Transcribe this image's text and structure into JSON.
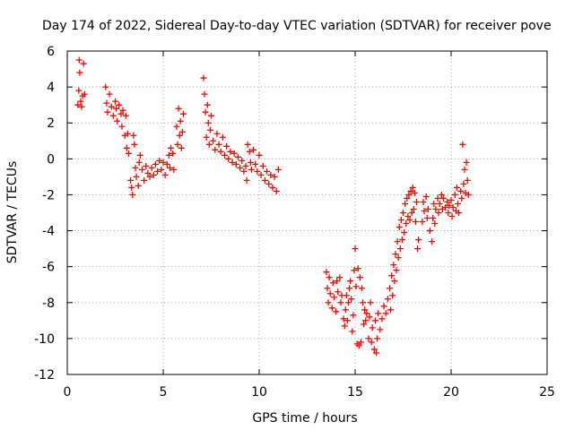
{
  "chart_data": {
    "type": "scatter",
    "title": "Day 174 of 2022, Sidereal Day-to-day VTEC variation (SDTVAR) for receiver pove",
    "xlabel": "GPS time / hours",
    "ylabel": "SDTVAR / TECUs",
    "xlim": [
      0,
      25
    ],
    "ylim": [
      -12,
      6
    ],
    "xticks": [
      0,
      5,
      10,
      15,
      20,
      25
    ],
    "yticks": [
      -12,
      -10,
      -8,
      -6,
      -4,
      -2,
      0,
      2,
      4,
      6
    ],
    "grid": true,
    "marker": "+",
    "marker_color": "#ff0000",
    "series": [
      {
        "name": "SDTVAR",
        "points": [
          [
            0.55,
            3.0
          ],
          [
            0.6,
            3.8
          ],
          [
            0.62,
            5.5
          ],
          [
            0.65,
            4.8
          ],
          [
            0.7,
            3.2
          ],
          [
            0.75,
            2.9
          ],
          [
            0.8,
            3.5
          ],
          [
            0.85,
            5.3
          ],
          [
            0.9,
            3.6
          ],
          [
            2.0,
            4.0
          ],
          [
            2.05,
            3.1
          ],
          [
            2.1,
            2.6
          ],
          [
            2.2,
            3.6
          ],
          [
            2.3,
            2.9
          ],
          [
            2.4,
            2.4
          ],
          [
            2.5,
            3.2
          ],
          [
            2.55,
            2.8
          ],
          [
            2.6,
            2.1
          ],
          [
            2.7,
            3.0
          ],
          [
            2.8,
            2.5
          ],
          [
            2.85,
            1.8
          ],
          [
            2.9,
            2.7
          ],
          [
            3.0,
            1.3
          ],
          [
            3.05,
            2.4
          ],
          [
            3.1,
            0.6
          ],
          [
            3.15,
            1.4
          ],
          [
            3.2,
            0.3
          ],
          [
            3.3,
            -1.2
          ],
          [
            3.35,
            -1.6
          ],
          [
            3.4,
            -2.0
          ],
          [
            3.45,
            1.3
          ],
          [
            3.5,
            0.8
          ],
          [
            3.55,
            -0.5
          ],
          [
            3.6,
            -1.0
          ],
          [
            3.7,
            -1.5
          ],
          [
            3.75,
            -0.2
          ],
          [
            3.8,
            0.2
          ],
          [
            3.9,
            -0.6
          ],
          [
            4.0,
            -1.2
          ],
          [
            4.1,
            -0.4
          ],
          [
            4.2,
            -0.8
          ],
          [
            4.3,
            -1.0
          ],
          [
            4.4,
            -0.5
          ],
          [
            4.5,
            -0.9
          ],
          [
            4.6,
            -0.3
          ],
          [
            4.7,
            -0.7
          ],
          [
            4.8,
            -0.1
          ],
          [
            4.9,
            -0.6
          ],
          [
            5.0,
            -0.2
          ],
          [
            5.1,
            -0.9
          ],
          [
            5.2,
            -0.3
          ],
          [
            5.3,
            0.2
          ],
          [
            5.35,
            -0.5
          ],
          [
            5.4,
            0.6
          ],
          [
            5.5,
            0.3
          ],
          [
            5.55,
            -0.6
          ],
          [
            5.7,
            1.8
          ],
          [
            5.75,
            0.8
          ],
          [
            5.8,
            2.8
          ],
          [
            5.85,
            1.3
          ],
          [
            5.9,
            2.1
          ],
          [
            5.95,
            0.6
          ],
          [
            6.0,
            1.5
          ],
          [
            6.05,
            2.5
          ],
          [
            7.1,
            4.5
          ],
          [
            7.15,
            3.6
          ],
          [
            7.2,
            2.6
          ],
          [
            7.25,
            1.2
          ],
          [
            7.3,
            3.0
          ],
          [
            7.35,
            2.0
          ],
          [
            7.4,
            0.8
          ],
          [
            7.45,
            1.6
          ],
          [
            7.5,
            2.4
          ],
          [
            7.6,
            1.0
          ],
          [
            7.7,
            0.5
          ],
          [
            7.8,
            1.4
          ],
          [
            7.9,
            0.8
          ],
          [
            8.0,
            0.4
          ],
          [
            8.1,
            1.2
          ],
          [
            8.2,
            0.2
          ],
          [
            8.3,
            0.7
          ],
          [
            8.4,
            0.0
          ],
          [
            8.5,
            0.4
          ],
          [
            8.6,
            -0.2
          ],
          [
            8.7,
            0.3
          ],
          [
            8.8,
            -0.3
          ],
          [
            8.9,
            0.1
          ],
          [
            9.0,
            -0.5
          ],
          [
            9.1,
            -0.1
          ],
          [
            9.2,
            -0.7
          ],
          [
            9.3,
            -0.4
          ],
          [
            9.35,
            -1.2
          ],
          [
            9.4,
            0.8
          ],
          [
            9.5,
            0.4
          ],
          [
            9.55,
            -0.2
          ],
          [
            9.6,
            -0.6
          ],
          [
            9.7,
            0.5
          ],
          [
            9.8,
            -0.3
          ],
          [
            9.9,
            -0.7
          ],
          [
            10.0,
            0.2
          ],
          [
            10.1,
            -0.9
          ],
          [
            10.2,
            -0.4
          ],
          [
            10.3,
            -1.2
          ],
          [
            10.4,
            -0.7
          ],
          [
            10.5,
            -1.4
          ],
          [
            10.6,
            -0.9
          ],
          [
            10.7,
            -1.6
          ],
          [
            10.8,
            -1.0
          ],
          [
            10.9,
            -1.8
          ],
          [
            11.0,
            -0.6
          ],
          [
            13.5,
            -6.3
          ],
          [
            13.55,
            -7.2
          ],
          [
            13.6,
            -8.0
          ],
          [
            13.65,
            -6.6
          ],
          [
            13.7,
            -7.5
          ],
          [
            13.8,
            -8.3
          ],
          [
            13.85,
            -6.9
          ],
          [
            13.9,
            -7.7
          ],
          [
            14.0,
            -8.5
          ],
          [
            14.05,
            -6.8
          ],
          [
            14.1,
            -7.4
          ],
          [
            14.2,
            -6.6
          ],
          [
            14.25,
            -8.0
          ],
          [
            14.3,
            -7.6
          ],
          [
            14.4,
            -8.9
          ],
          [
            14.45,
            -9.3
          ],
          [
            14.5,
            -8.4
          ],
          [
            14.55,
            -7.6
          ],
          [
            14.6,
            -9.0
          ],
          [
            14.65,
            -8.0
          ],
          [
            14.7,
            -7.2
          ],
          [
            14.75,
            -6.8
          ],
          [
            14.8,
            -7.8
          ],
          [
            14.85,
            -9.6
          ],
          [
            14.9,
            -8.7
          ],
          [
            14.95,
            -6.2
          ],
          [
            15.0,
            -5.0
          ],
          [
            15.05,
            -7.1
          ],
          [
            15.1,
            -10.3
          ],
          [
            15.15,
            -6.1
          ],
          [
            15.2,
            -10.4
          ],
          [
            15.25,
            -6.6
          ],
          [
            15.3,
            -10.2
          ],
          [
            15.35,
            -7.2
          ],
          [
            15.4,
            -8.0
          ],
          [
            15.45,
            -9.2
          ],
          [
            15.5,
            -8.4
          ],
          [
            15.55,
            -9.0
          ],
          [
            15.6,
            -8.6
          ],
          [
            15.7,
            -10.0
          ],
          [
            15.75,
            -8.8
          ],
          [
            15.8,
            -8.0
          ],
          [
            15.85,
            -10.2
          ],
          [
            15.9,
            -9.4
          ],
          [
            16.0,
            -10.6
          ],
          [
            16.05,
            -9.0
          ],
          [
            16.1,
            -10.8
          ],
          [
            16.15,
            -10.0
          ],
          [
            16.2,
            -8.6
          ],
          [
            16.3,
            -9.5
          ],
          [
            16.4,
            -8.9
          ],
          [
            16.5,
            -8.2
          ],
          [
            16.6,
            -8.6
          ],
          [
            16.7,
            -7.8
          ],
          [
            16.8,
            -7.2
          ],
          [
            16.85,
            -8.4
          ],
          [
            16.9,
            -6.5
          ],
          [
            16.95,
            -7.6
          ],
          [
            17.0,
            -5.9
          ],
          [
            17.05,
            -6.8
          ],
          [
            17.1,
            -5.3
          ],
          [
            17.15,
            -6.2
          ],
          [
            17.2,
            -4.6
          ],
          [
            17.25,
            -5.5
          ],
          [
            17.3,
            -3.8
          ],
          [
            17.35,
            -5.0
          ],
          [
            17.4,
            -3.4
          ],
          [
            17.45,
            -4.5
          ],
          [
            17.5,
            -3.0
          ],
          [
            17.55,
            -4.1
          ],
          [
            17.6,
            -2.5
          ],
          [
            17.65,
            -3.6
          ],
          [
            17.7,
            -2.2
          ],
          [
            17.75,
            -3.2
          ],
          [
            17.8,
            -2.0
          ],
          [
            17.85,
            -3.4
          ],
          [
            17.9,
            -1.8
          ],
          [
            17.95,
            -3.0
          ],
          [
            18.0,
            -1.6
          ],
          [
            18.05,
            -2.8
          ],
          [
            18.1,
            -1.9
          ],
          [
            18.15,
            -3.5
          ],
          [
            18.2,
            -2.4
          ],
          [
            18.25,
            -5.0
          ],
          [
            18.3,
            -4.5
          ],
          [
            18.5,
            -3.5
          ],
          [
            18.55,
            -2.4
          ],
          [
            18.6,
            -2.9
          ],
          [
            18.7,
            -2.1
          ],
          [
            18.75,
            -3.3
          ],
          [
            18.8,
            -2.8
          ],
          [
            18.9,
            -4.0
          ],
          [
            19.0,
            -4.6
          ],
          [
            19.05,
            -3.3
          ],
          [
            19.1,
            -2.5
          ],
          [
            19.15,
            -3.6
          ],
          [
            19.2,
            -2.8
          ],
          [
            19.3,
            -2.2
          ],
          [
            19.35,
            -3.0
          ],
          [
            19.4,
            -2.5
          ],
          [
            19.5,
            -2.0
          ],
          [
            19.55,
            -2.8
          ],
          [
            19.6,
            -2.2
          ],
          [
            19.7,
            -2.7
          ],
          [
            19.8,
            -2.4
          ],
          [
            19.85,
            -3.0
          ],
          [
            19.9,
            -2.6
          ],
          [
            20.0,
            -2.3
          ],
          [
            20.05,
            -3.2
          ],
          [
            20.1,
            -2.7
          ],
          [
            20.2,
            -2.0
          ],
          [
            20.25,
            -2.9
          ],
          [
            20.3,
            -1.6
          ],
          [
            20.35,
            -2.5
          ],
          [
            20.4,
            -3.0
          ],
          [
            20.5,
            -1.8
          ],
          [
            20.55,
            -2.2
          ],
          [
            20.6,
            0.8
          ],
          [
            20.65,
            -1.4
          ],
          [
            20.7,
            -0.6
          ],
          [
            20.75,
            -1.9
          ],
          [
            20.8,
            -0.2
          ],
          [
            20.85,
            -1.2
          ],
          [
            20.9,
            -2.0
          ]
        ]
      }
    ]
  }
}
